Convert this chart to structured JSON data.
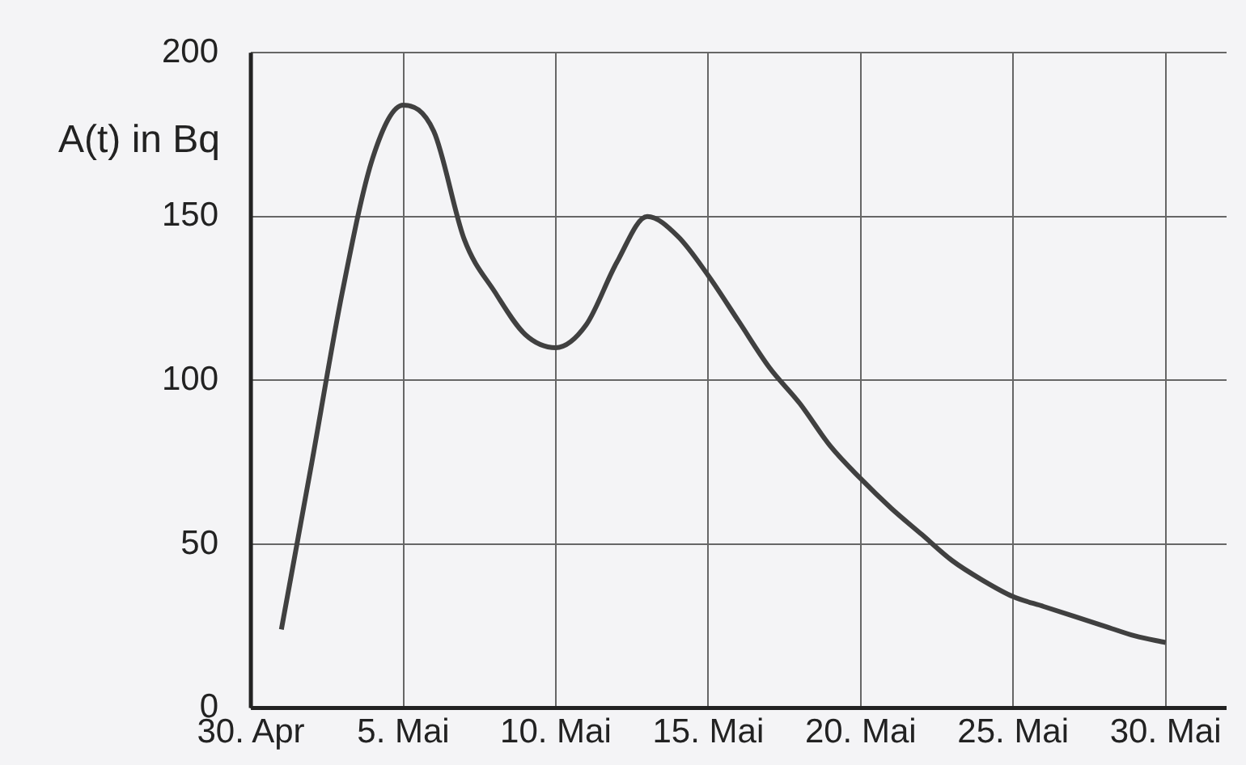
{
  "chart_data": {
    "type": "line",
    "ylabel": "A(t) in Bq",
    "x": [
      "--05-01",
      "--05-02",
      "--05-03",
      "--05-04",
      "--05-05",
      "--05-06",
      "--05-07",
      "--05-08",
      "--05-09",
      "--05-10",
      "--05-11",
      "--05-12",
      "--05-13",
      "--05-14",
      "--05-15",
      "--05-16",
      "--05-17",
      "--05-18",
      "--05-19",
      "--05-20",
      "--05-21",
      "--05-22",
      "--05-23",
      "--05-24",
      "--05-25",
      "--05-26",
      "--05-27",
      "--05-28",
      "--05-29",
      "--05-30"
    ],
    "series": [
      {
        "color": "#404040",
        "values": [
          24,
          75,
          127,
          168,
          184,
          176,
          143,
          127,
          114,
          110,
          117,
          136,
          150,
          144,
          132,
          118,
          104,
          93,
          80,
          70,
          61,
          53,
          45,
          39,
          34,
          31,
          28,
          25,
          22,
          20
        ]
      }
    ],
    "xlim": [
      "--04-30",
      "--06-01"
    ],
    "ylim": [
      0,
      200
    ],
    "xticks": [
      {
        "value": "--04-30",
        "label": "30. Apr"
      },
      {
        "value": "--05-05",
        "label": "5. Mai"
      },
      {
        "value": "--05-10",
        "label": "10. Mai"
      },
      {
        "value": "--05-15",
        "label": "15. Mai"
      },
      {
        "value": "--05-20",
        "label": "20. Mai"
      },
      {
        "value": "--05-25",
        "label": "25. Mai"
      },
      {
        "value": "--05-30",
        "label": "30. Mai"
      }
    ],
    "yticks": [
      0,
      50,
      100,
      150,
      200
    ],
    "grid": true,
    "legend": false,
    "marker": "none",
    "line_style": "solid"
  }
}
